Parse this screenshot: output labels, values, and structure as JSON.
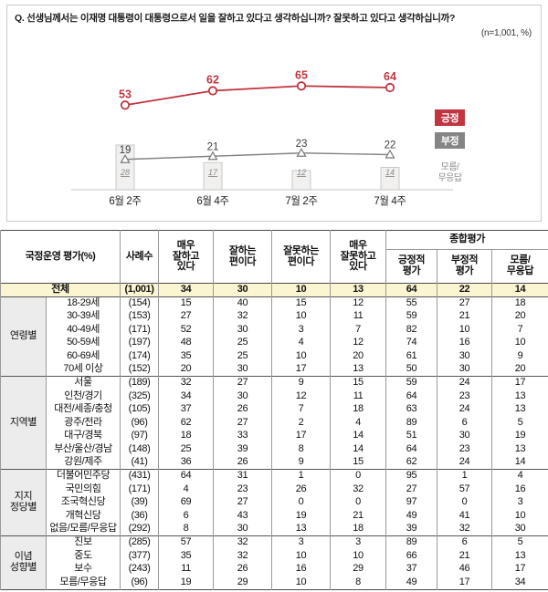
{
  "question": "Q. 선생님께서는 이재명 대통령이 대통령으로서 일을 잘하고 있다고 생각하십니까? 잘못하고 있다고 생각하십니까?",
  "sample_note": "(n=1,001, %)",
  "colors": {
    "positive": "#c0353f",
    "negative": "#858585",
    "bar_fill": "#f1f0ee",
    "bar_border": "#c9c9c9",
    "neg_label": "#3d3d3d",
    "dk_text": "#8a8a8a",
    "axis": "#c4c4c4",
    "total_row_bg": "#fbf5d2",
    "group_cell_bg": "#ececec"
  },
  "chart_data": {
    "type": "line",
    "categories": [
      "6월 2주",
      "6월 4주",
      "7월 2주",
      "7월 4주"
    ],
    "series": [
      {
        "name": "긍정",
        "marker": "circle",
        "color": "#c0353f",
        "values": [
          53,
          62,
          65,
          64
        ]
      },
      {
        "name": "부정",
        "marker": "triangle",
        "color": "#858585",
        "values": [
          19,
          21,
          23,
          22
        ]
      },
      {
        "name": "모름/무응답",
        "marker": "bar",
        "color": "#f1f0ee",
        "values": [
          28,
          17,
          12,
          14
        ]
      }
    ],
    "title": "",
    "xlabel": "",
    "ylabel": "",
    "ylim": [
      0,
      100
    ],
    "grid": false,
    "legend_position": "right"
  },
  "legend": {
    "positive": "긍정",
    "negative": "부정",
    "dk_line1": "모름/",
    "dk_line2": "무응답"
  },
  "table": {
    "header": {
      "title": "국정운영 평가(%)",
      "n_label": "사례수",
      "cols": [
        "매우\n잘하고\n있다",
        "잘하는\n편이다",
        "잘못하는\n편이다",
        "매우\n잘못하고\n있다"
      ],
      "summary_label": "종합평가",
      "summary_cols": [
        "긍정적\n평가",
        "부정적\n평가",
        "모름/\n무응답"
      ]
    },
    "total_row": {
      "label": "전체",
      "n": "(1,001)",
      "values": [
        34,
        30,
        10,
        13,
        64,
        22,
        14
      ]
    },
    "groups": [
      {
        "label": "연령별",
        "rows": [
          {
            "label": "18-29세",
            "n": "(154)",
            "values": [
              15,
              40,
              15,
              12,
              55,
              27,
              18
            ]
          },
          {
            "label": "30-39세",
            "n": "(153)",
            "values": [
              27,
              32,
              10,
              11,
              59,
              21,
              20
            ]
          },
          {
            "label": "40-49세",
            "n": "(171)",
            "values": [
              52,
              30,
              3,
              7,
              82,
              10,
              7
            ]
          },
          {
            "label": "50-59세",
            "n": "(197)",
            "values": [
              48,
              25,
              4,
              12,
              74,
              16,
              10
            ]
          },
          {
            "label": "60-69세",
            "n": "(174)",
            "values": [
              35,
              25,
              10,
              20,
              61,
              30,
              9
            ]
          },
          {
            "label": "70세 이상",
            "n": "(152)",
            "values": [
              20,
              30,
              17,
              13,
              50,
              30,
              20
            ]
          }
        ]
      },
      {
        "label": "지역별",
        "rows": [
          {
            "label": "서울",
            "n": "(189)",
            "values": [
              32,
              27,
              9,
              15,
              59,
              24,
              17
            ]
          },
          {
            "label": "인천/경기",
            "n": "(325)",
            "values": [
              34,
              30,
              12,
              11,
              64,
              23,
              13
            ]
          },
          {
            "label": "대전/세종/충청",
            "n": "(105)",
            "values": [
              37,
              26,
              7,
              18,
              63,
              24,
              13
            ]
          },
          {
            "label": "광주/전라",
            "n": "(96)",
            "values": [
              62,
              27,
              2,
              4,
              89,
              6,
              5
            ]
          },
          {
            "label": "대구/경북",
            "n": "(97)",
            "values": [
              18,
              33,
              17,
              14,
              51,
              30,
              19
            ]
          },
          {
            "label": "부산/울산/경남",
            "n": "(148)",
            "values": [
              25,
              39,
              8,
              14,
              64,
              23,
              13
            ]
          },
          {
            "label": "강원/제주",
            "n": "(41)",
            "values": [
              36,
              26,
              9,
              15,
              62,
              24,
              14
            ]
          }
        ]
      },
      {
        "label": "지지\n정당별",
        "rows": [
          {
            "label": "더불어민주당",
            "n": "(431)",
            "values": [
              64,
              31,
              1,
              0,
              95,
              1,
              4
            ]
          },
          {
            "label": "국민의힘",
            "n": "(171)",
            "values": [
              4,
              23,
              26,
              32,
              27,
              57,
              16
            ]
          },
          {
            "label": "조국혁신당",
            "n": "(39)",
            "values": [
              69,
              27,
              0,
              0,
              97,
              0,
              3
            ]
          },
          {
            "label": "개혁신당",
            "n": "(36)",
            "values": [
              6,
              43,
              19,
              21,
              49,
              41,
              10
            ]
          },
          {
            "label": "없음/모름/무응답",
            "n": "(292)",
            "values": [
              8,
              30,
              13,
              18,
              39,
              32,
              30
            ]
          }
        ]
      },
      {
        "label": "이념\n성향별",
        "rows": [
          {
            "label": "진보",
            "n": "(285)",
            "values": [
              57,
              32,
              3,
              3,
              89,
              6,
              5
            ]
          },
          {
            "label": "중도",
            "n": "(377)",
            "values": [
              35,
              32,
              10,
              10,
              66,
              21,
              13
            ]
          },
          {
            "label": "보수",
            "n": "(243)",
            "values": [
              11,
              26,
              16,
              29,
              37,
              46,
              17
            ]
          },
          {
            "label": "모름/무응답",
            "n": "(96)",
            "values": [
              19,
              29,
              10,
              8,
              49,
              17,
              34
            ]
          }
        ]
      }
    ]
  }
}
